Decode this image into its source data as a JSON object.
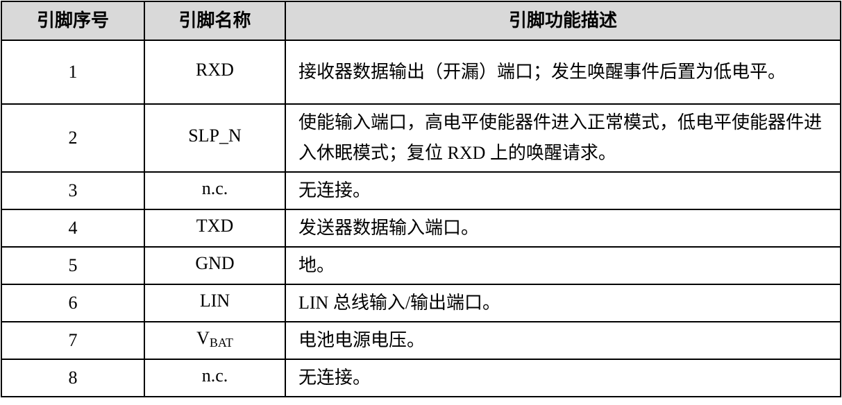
{
  "table": {
    "headers": [
      "引脚序号",
      "引脚名称",
      "引脚功能描述"
    ],
    "rows": [
      {
        "no": "1",
        "name": "RXD",
        "sub": "",
        "desc": "接收器数据输出（开漏）端口；发生唤醒事件后置为低电平。"
      },
      {
        "no": "2",
        "name": "SLP_N",
        "sub": "",
        "desc": "使能输入端口，高电平使能器件进入正常模式，低电平使能器件进入休眠模式；复位 RXD 上的唤醒请求。"
      },
      {
        "no": "3",
        "name": "n.c.",
        "sub": "",
        "desc": "无连接。"
      },
      {
        "no": "4",
        "name": "TXD",
        "sub": "",
        "desc": "发送器数据输入端口。"
      },
      {
        "no": "5",
        "name": "GND",
        "sub": "",
        "desc": "地。"
      },
      {
        "no": "6",
        "name": "LIN",
        "sub": "",
        "desc": "LIN 总线输入/输出端口。"
      },
      {
        "no": "7",
        "name": "V",
        "sub": "BAT",
        "desc": "电池电源电压。"
      },
      {
        "no": "8",
        "name": "n.c.",
        "sub": "",
        "desc": "无连接。"
      }
    ]
  }
}
